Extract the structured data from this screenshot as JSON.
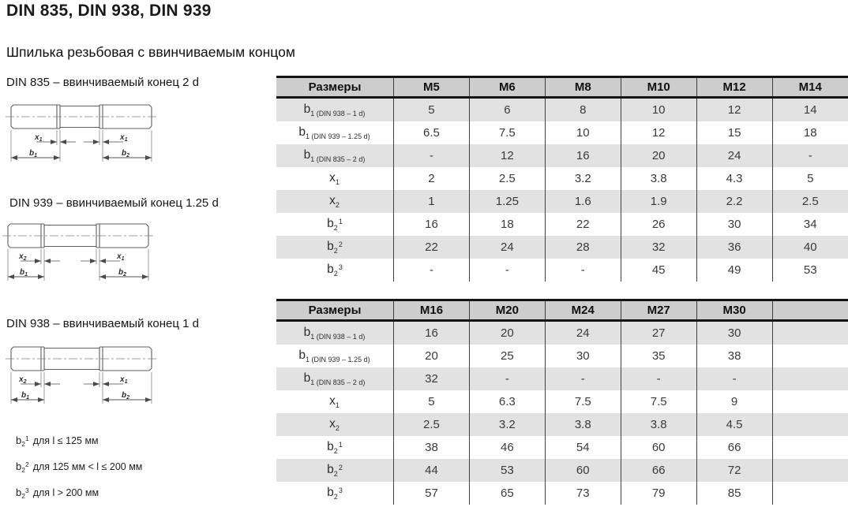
{
  "page": {
    "title": "DIN 835, DIN 938, DIN 939",
    "subtitle": "Шпилька резьбовая с ввинчиваемым концом"
  },
  "colors": {
    "header_bg": "#cdcdcd",
    "stripe_bg": "#e2e2e2",
    "border": "#141414",
    "text": "#3a3a3a"
  },
  "drawings": [
    {
      "title": "DIN 835 – ввинчиваемый конец 2 d",
      "dim_left_base": "x",
      "dim_left_sub": "1",
      "dim_right_base": "x",
      "dim_right_sub": "1",
      "dim_b1_base": "b",
      "dim_b1_sub": "1",
      "dim_b2_base": "b",
      "dim_b2_sub": "2"
    },
    {
      "title": "DIN 939 – ввинчиваемый конец 1.25 d",
      "dim_left_base": "x",
      "dim_left_sub": "2",
      "dim_right_base": "x",
      "dim_right_sub": "1",
      "dim_b1_base": "b",
      "dim_b1_sub": "1",
      "dim_b2_base": "b",
      "dim_b2_sub": "2"
    },
    {
      "title": "DIN 938 – ввинчиваемый конец 1 d",
      "dim_left_base": "x",
      "dim_left_sub": "2",
      "dim_right_base": "x",
      "dim_right_sub": "1",
      "dim_b1_base": "b",
      "dim_b1_sub": "1",
      "dim_b2_base": "b",
      "dim_b2_sub": "2"
    }
  ],
  "tables": [
    {
      "headers": [
        "Размеры",
        "M5",
        "M6",
        "M8",
        "M10",
        "M12",
        "M14"
      ],
      "rows": [
        {
          "label_base": "b",
          "label_sub": "1 (DIN 938 – 1 d)",
          "label_sup": "",
          "values": [
            "5",
            "6",
            "8",
            "10",
            "12",
            "14"
          ]
        },
        {
          "label_base": "b",
          "label_sub": "1 (DIN 939 – 1.25 d)",
          "label_sup": "",
          "values": [
            "6.5",
            "7.5",
            "10",
            "12",
            "15",
            "18"
          ]
        },
        {
          "label_base": "b",
          "label_sub": "1 (DIN 835 – 2 d)",
          "label_sup": "",
          "values": [
            "-",
            "12",
            "16",
            "20",
            "24",
            "-"
          ]
        },
        {
          "label_base": "x",
          "label_sub": "1",
          "label_sup": "",
          "values": [
            "2",
            "2.5",
            "3.2",
            "3.8",
            "4.3",
            "5"
          ]
        },
        {
          "label_base": "x",
          "label_sub": "2",
          "label_sup": "",
          "values": [
            "1",
            "1.25",
            "1.6",
            "1.9",
            "2.2",
            "2.5"
          ]
        },
        {
          "label_base": "b",
          "label_sub": "2",
          "label_sup": "1",
          "values": [
            "16",
            "18",
            "22",
            "26",
            "30",
            "34"
          ]
        },
        {
          "label_base": "b",
          "label_sub": "2",
          "label_sup": "2",
          "values": [
            "22",
            "24",
            "28",
            "32",
            "36",
            "40"
          ]
        },
        {
          "label_base": "b",
          "label_sub": "2",
          "label_sup": "3",
          "values": [
            "-",
            "-",
            "-",
            "45",
            "49",
            "53"
          ]
        }
      ]
    },
    {
      "headers": [
        "Размеры",
        "M16",
        "M20",
        "M24",
        "M27",
        "M30",
        ""
      ],
      "rows": [
        {
          "label_base": "b",
          "label_sub": "1 (DIN 938 – 1 d)",
          "label_sup": "",
          "values": [
            "16",
            "20",
            "24",
            "27",
            "30",
            ""
          ]
        },
        {
          "label_base": "b",
          "label_sub": "1 (DIN 939 – 1.25 d)",
          "label_sup": "",
          "values": [
            "20",
            "25",
            "30",
            "35",
            "38",
            ""
          ]
        },
        {
          "label_base": "b",
          "label_sub": "1 (DIN 835 – 2 d)",
          "label_sup": "",
          "values": [
            "32",
            "-",
            "-",
            "-",
            "-",
            ""
          ]
        },
        {
          "label_base": "x",
          "label_sub": "1",
          "label_sup": "",
          "values": [
            "5",
            "6.3",
            "7.5",
            "7.5",
            "9",
            ""
          ]
        },
        {
          "label_base": "x",
          "label_sub": "2",
          "label_sup": "",
          "values": [
            "2.5",
            "3.2",
            "3.8",
            "3.8",
            "4.5",
            ""
          ]
        },
        {
          "label_base": "b",
          "label_sub": "2",
          "label_sup": "1",
          "values": [
            "38",
            "46",
            "54",
            "60",
            "66",
            ""
          ]
        },
        {
          "label_base": "b",
          "label_sub": "2",
          "label_sup": "2",
          "values": [
            "44",
            "53",
            "60",
            "66",
            "72",
            ""
          ]
        },
        {
          "label_base": "b",
          "label_sub": "2",
          "label_sup": "3",
          "values": [
            "57",
            "65",
            "73",
            "79",
            "85",
            ""
          ]
        }
      ]
    }
  ],
  "footnotes": [
    {
      "base": "b",
      "sub": "2",
      "sup": "1",
      "text": "для l ≤ 125 мм"
    },
    {
      "base": "b",
      "sub": "2",
      "sup": "2",
      "text": "для 125 мм < l ≤ 200 мм"
    },
    {
      "base": "b",
      "sub": "2",
      "sup": "3",
      "text": "для l > 200 мм"
    }
  ]
}
